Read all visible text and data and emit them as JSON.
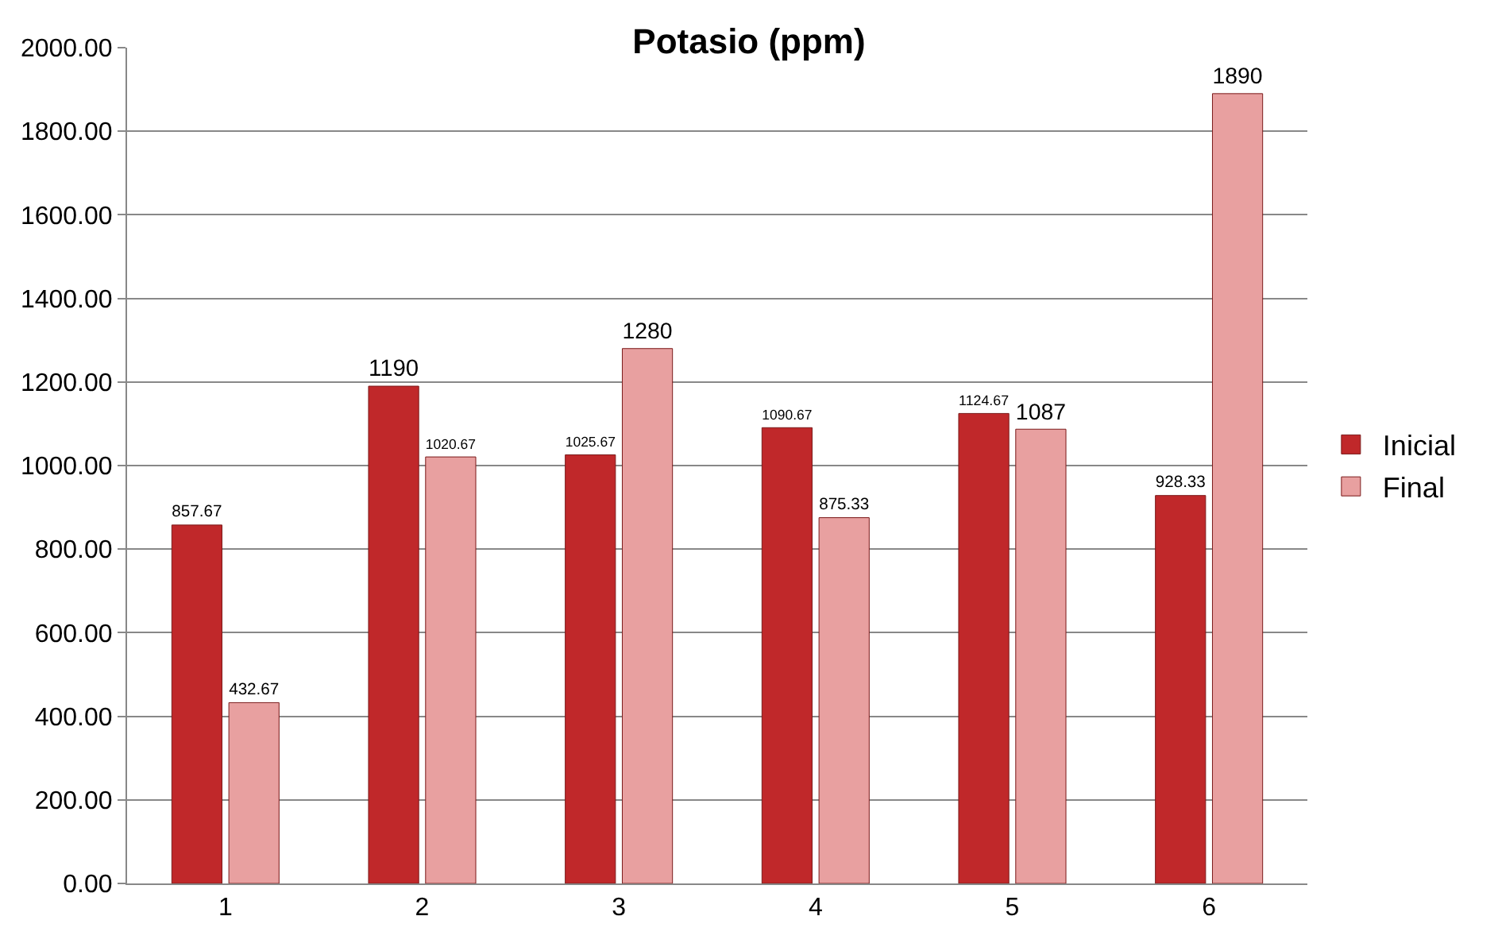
{
  "chart_data": {
    "type": "bar",
    "title": "Potasio (ppm)",
    "categories": [
      "1",
      "2",
      "3",
      "4",
      "5",
      "6"
    ],
    "series": [
      {
        "name": "Inicial",
        "color": "#c0282a",
        "values": [
          857.67,
          1190,
          1025.67,
          1090.67,
          1124.67,
          928.33
        ]
      },
      {
        "name": "Final",
        "color": "#e8a0a0",
        "values": [
          432.67,
          1020.67,
          1280,
          875.33,
          1087,
          1890
        ]
      }
    ],
    "ylim": [
      0,
      2000
    ],
    "yticks": [
      {
        "value": 0,
        "label": "0.00"
      },
      {
        "value": 200,
        "label": "200.00"
      },
      {
        "value": 400,
        "label": "400.00"
      },
      {
        "value": 600,
        "label": "600.00"
      },
      {
        "value": 800,
        "label": "800.00"
      },
      {
        "value": 1000,
        "label": "1000.00"
      },
      {
        "value": 1200,
        "label": "1200.00"
      },
      {
        "value": 1400,
        "label": "1400.00"
      },
      {
        "value": 1600,
        "label": "1600.00"
      },
      {
        "value": 1800,
        "label": "1800.00"
      },
      {
        "value": 2000,
        "label": "2000.00"
      }
    ],
    "grid": "y",
    "legend": "right",
    "data_labels": true
  }
}
